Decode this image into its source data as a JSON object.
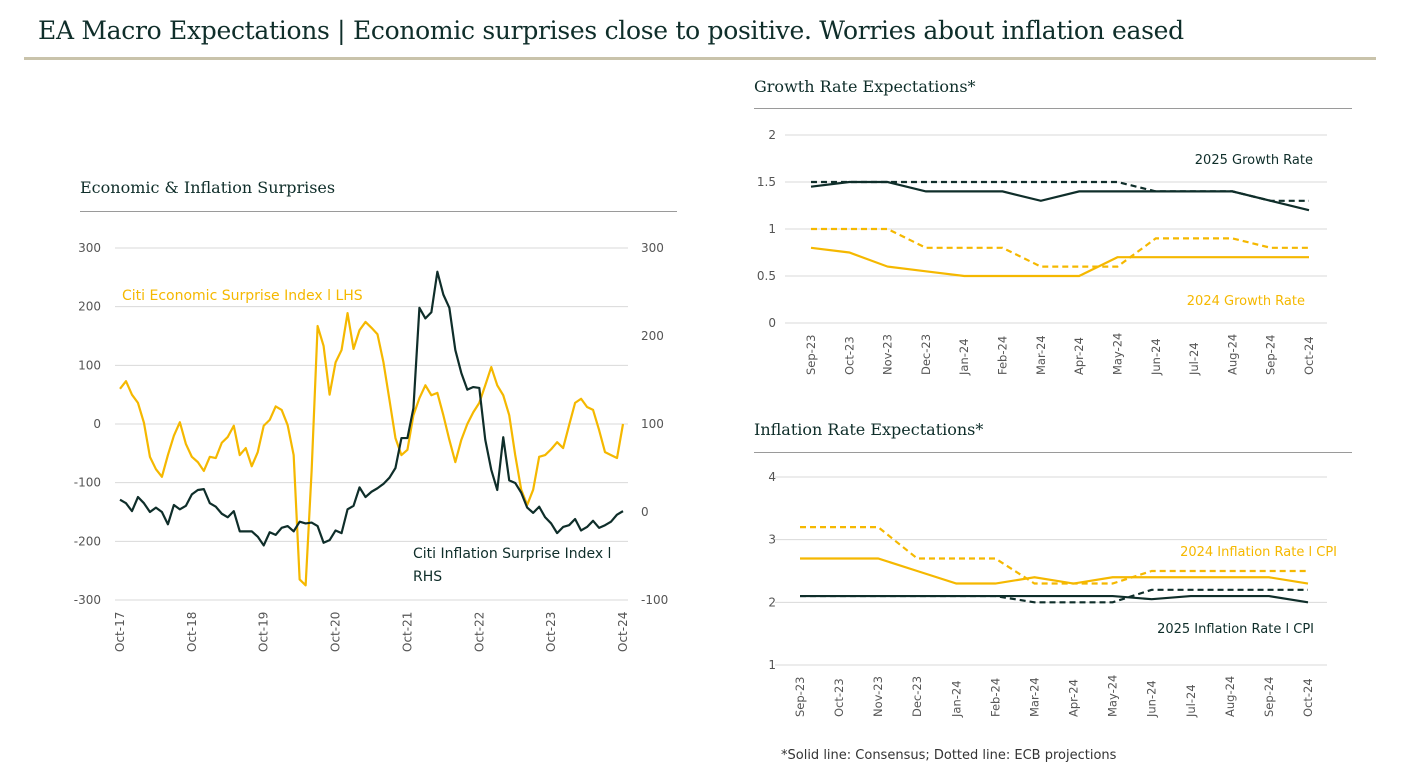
{
  "title": "EA Macro Expectations | Economic surprises close to positive. Worries about inflation eased",
  "footnote": "*Solid line: Consensus; Dotted line: ECB projections",
  "colors": {
    "dark": "#0f2e2a",
    "gold": "#f5b800",
    "grid": "#d9d9d9"
  },
  "chart_data": [
    {
      "type": "line",
      "title": "Economic & Inflation Surprises",
      "x_start": "Oct-17",
      "x_ticks": [
        "Oct-17",
        "Oct-18",
        "Oct-19",
        "Oct-20",
        "Oct-21",
        "Oct-22",
        "Oct-23",
        "Oct-24"
      ],
      "ylim_left": [
        -300,
        300
      ],
      "yticks_left": [
        300,
        200,
        100,
        0,
        -100,
        -200,
        -300
      ],
      "ylim_right": [
        -100,
        300
      ],
      "yticks_right": [
        300,
        200,
        100,
        0,
        -100
      ],
      "grid": true,
      "series": [
        {
          "name": "Citi Economic Surprise Index l LHS",
          "axis": "left",
          "color": "#f5b800",
          "values": [
            60,
            73,
            50,
            36,
            2,
            -56,
            -77,
            -90,
            -53,
            -20,
            3,
            -34,
            -56,
            -65,
            -80,
            -56,
            -58,
            -32,
            -22,
            -3,
            -53,
            -41,
            -72,
            -48,
            -3,
            7,
            30,
            24,
            -2,
            -53,
            -265,
            -275,
            -80,
            167,
            133,
            50,
            105,
            126,
            189,
            128,
            160,
            174,
            164,
            153,
            105,
            41,
            -24,
            -53,
            -44,
            15,
            44,
            66,
            49,
            53,
            15,
            -27,
            -65,
            -27,
            0,
            20,
            36,
            66,
            97,
            66,
            49,
            15,
            -53,
            -112,
            -138,
            -112,
            -56,
            -53,
            -43,
            -31,
            -41,
            -2,
            36,
            43,
            29,
            24,
            -10,
            -48,
            -53,
            -58,
            0
          ]
        },
        {
          "name": "Citi Inflation Surprise Index l RHS",
          "axis": "right",
          "color": "#0f2e2a",
          "values": [
            14,
            10,
            1,
            17,
            10,
            0,
            5,
            0,
            -14,
            8,
            3,
            7,
            20,
            25,
            26,
            10,
            6,
            -2,
            -6,
            1,
            -22,
            -22,
            -22,
            -28,
            -38,
            -23,
            -26,
            -18,
            -16,
            -22,
            -11,
            -13,
            -12,
            -16,
            -35,
            -32,
            -21,
            -24,
            3,
            7,
            28,
            17,
            23,
            27,
            32,
            39,
            50,
            84,
            84,
            118,
            232,
            220,
            227,
            273,
            247,
            232,
            184,
            158,
            139,
            142,
            141,
            82,
            48,
            25,
            85,
            36,
            33,
            22,
            5,
            -1,
            6,
            -6,
            -13,
            -24,
            -17,
            -15,
            -8,
            -21,
            -17,
            -10,
            -18,
            -15,
            -11,
            -3,
            1
          ]
        }
      ]
    },
    {
      "type": "line",
      "title": "Growth Rate Expectations*",
      "categories": [
        "Sep-23",
        "Oct-23",
        "Nov-23",
        "Dec-23",
        "Jan-24",
        "Feb-24",
        "Mar-24",
        "Apr-24",
        "May-24",
        "Jun-24",
        "Jul-24",
        "Aug-24",
        "Sep-24",
        "Oct-24"
      ],
      "ylim": [
        0,
        2
      ],
      "yticks": [
        "2",
        "1.5",
        "1",
        "0.5",
        "0"
      ],
      "grid": true,
      "labels": {
        "y2025": "2025 Growth Rate",
        "y2024": "2024 Growth Rate"
      },
      "series": [
        {
          "name": "2025 Growth Rate",
          "style": "solid",
          "color": "#0f2e2a",
          "values": [
            1.45,
            1.5,
            1.5,
            1.4,
            1.4,
            1.4,
            1.3,
            1.4,
            1.4,
            1.4,
            1.4,
            1.4,
            1.3,
            1.2
          ]
        },
        {
          "name": "2025 Growth Rate",
          "style": "dashed",
          "color": "#0f2e2a",
          "values": [
            1.5,
            1.5,
            1.5,
            1.5,
            1.5,
            1.5,
            1.5,
            1.5,
            1.5,
            1.4,
            1.4,
            1.4,
            1.3,
            1.3
          ]
        },
        {
          "name": "2024 Growth Rate",
          "style": "solid",
          "color": "#f5b800",
          "values": [
            0.8,
            0.75,
            0.6,
            0.55,
            0.5,
            0.5,
            0.5,
            0.5,
            0.7,
            0.7,
            0.7,
            0.7,
            0.7,
            0.7
          ]
        },
        {
          "name": "2024 Growth Rate",
          "style": "dashed",
          "color": "#f5b800",
          "values": [
            1.0,
            1.0,
            1.0,
            0.8,
            0.8,
            0.8,
            0.6,
            0.6,
            0.6,
            0.9,
            0.9,
            0.9,
            0.8,
            0.8
          ]
        }
      ]
    },
    {
      "type": "line",
      "title": "Inflation Rate Expectations*",
      "categories": [
        "Sep-23",
        "Oct-23",
        "Nov-23",
        "Dec-23",
        "Jan-24",
        "Feb-24",
        "Mar-24",
        "Apr-24",
        "May-24",
        "Jun-24",
        "Jul-24",
        "Aug-24",
        "Sep-24",
        "Oct-24"
      ],
      "ylim": [
        1,
        4
      ],
      "yticks": [
        "4",
        "3",
        "2",
        "1"
      ],
      "grid": true,
      "labels": {
        "y2024": "2024 Inflation Rate l CPI",
        "y2025": "2025 Inflation Rate l CPI"
      },
      "series": [
        {
          "name": "2024 Inflation Rate l CPI",
          "style": "solid",
          "color": "#f5b800",
          "values": [
            2.7,
            2.7,
            2.7,
            2.5,
            2.3,
            2.3,
            2.4,
            2.3,
            2.4,
            2.4,
            2.4,
            2.4,
            2.4,
            2.3
          ]
        },
        {
          "name": "2024 Inflation Rate l CPI",
          "style": "dashed",
          "color": "#f5b800",
          "values": [
            3.2,
            3.2,
            3.2,
            2.7,
            2.7,
            2.7,
            2.3,
            2.3,
            2.3,
            2.5,
            2.5,
            2.5,
            2.5,
            2.5
          ]
        },
        {
          "name": "2025 Inflation Rate l CPI",
          "style": "solid",
          "color": "#0f2e2a",
          "values": [
            2.1,
            2.1,
            2.1,
            2.1,
            2.1,
            2.1,
            2.1,
            2.1,
            2.1,
            2.05,
            2.1,
            2.1,
            2.1,
            2.0
          ]
        },
        {
          "name": "2025 Inflation Rate l CPI",
          "style": "dashed",
          "color": "#0f2e2a",
          "values": [
            2.1,
            2.1,
            2.1,
            2.1,
            2.1,
            2.1,
            2.0,
            2.0,
            2.0,
            2.2,
            2.2,
            2.2,
            2.2,
            2.2
          ]
        }
      ]
    }
  ]
}
